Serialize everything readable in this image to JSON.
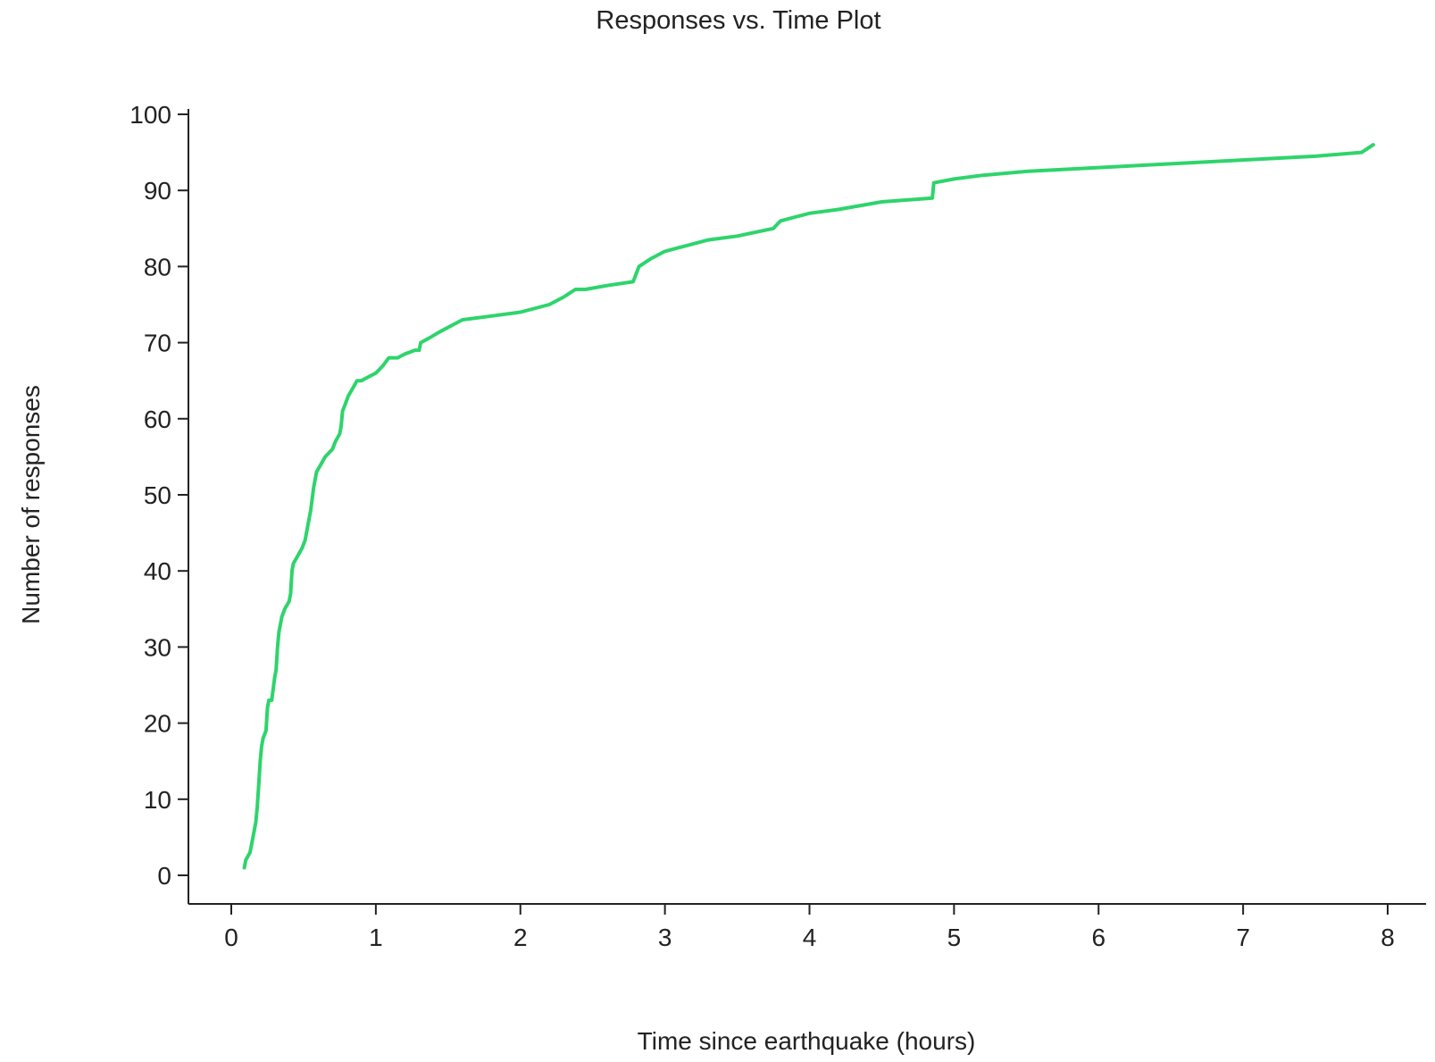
{
  "chart_data": {
    "type": "line",
    "title": "Responses vs. Time Plot",
    "xlabel": "Time since earthquake (hours)",
    "ylabel": "Number of responses",
    "xlim": [
      0,
      8
    ],
    "ylim": [
      0,
      100
    ],
    "x_ticks": [
      "0",
      "1",
      "2",
      "3",
      "4",
      "5",
      "6",
      "7",
      "8"
    ],
    "y_ticks": [
      "0",
      "10",
      "20",
      "30",
      "40",
      "50",
      "60",
      "70",
      "80",
      "90",
      "100"
    ],
    "grid": false,
    "legend": false,
    "line_color": "#2ed46c",
    "series": [
      {
        "x": [
          0.09,
          0.1,
          0.13,
          0.15,
          0.17,
          0.18,
          0.19,
          0.2,
          0.21,
          0.22,
          0.24,
          0.25,
          0.26,
          0.28,
          0.3,
          0.31,
          0.32,
          0.33,
          0.35,
          0.37,
          0.4,
          0.41,
          0.42,
          0.43,
          0.46,
          0.49,
          0.51,
          0.53,
          0.55,
          0.57,
          0.59,
          0.62,
          0.65,
          0.7,
          0.72,
          0.75,
          0.76,
          0.77,
          0.79,
          0.81,
          0.84,
          0.87,
          0.9,
          0.95,
          1.0,
          1.05,
          1.09,
          1.12,
          1.15,
          1.2,
          1.27,
          1.3,
          1.31,
          1.36,
          1.45,
          1.6,
          1.8,
          2.0,
          2.2,
          2.3,
          2.38,
          2.45,
          2.6,
          2.78,
          2.8,
          2.82,
          2.9,
          3.0,
          3.1,
          3.3,
          3.5,
          3.75,
          3.8,
          3.9,
          4.0,
          4.2,
          4.5,
          4.85,
          4.86,
          5.0,
          5.2,
          5.5,
          6.0,
          6.5,
          7.0,
          7.5,
          7.82,
          7.9
        ],
        "y": [
          1,
          2,
          3,
          5,
          7,
          9,
          12,
          15,
          17,
          18,
          19,
          22,
          23,
          23,
          26,
          27,
          30,
          32,
          34,
          35,
          36,
          37,
          40,
          41,
          42,
          43,
          44,
          46,
          48,
          51,
          53,
          54,
          55,
          56,
          57,
          58,
          59,
          61,
          62,
          63,
          64,
          65,
          65,
          65.5,
          66,
          67,
          68,
          68,
          68,
          68.5,
          69,
          69,
          70,
          70.5,
          71.5,
          73,
          73.5,
          74,
          75,
          76,
          77,
          77,
          77.5,
          78,
          79,
          80,
          81,
          82,
          82.5,
          83.5,
          84,
          85,
          86,
          86.5,
          87,
          87.5,
          88.5,
          89,
          91,
          91.5,
          92,
          92.5,
          93,
          93.5,
          94,
          94.5,
          95,
          96
        ]
      }
    ]
  }
}
